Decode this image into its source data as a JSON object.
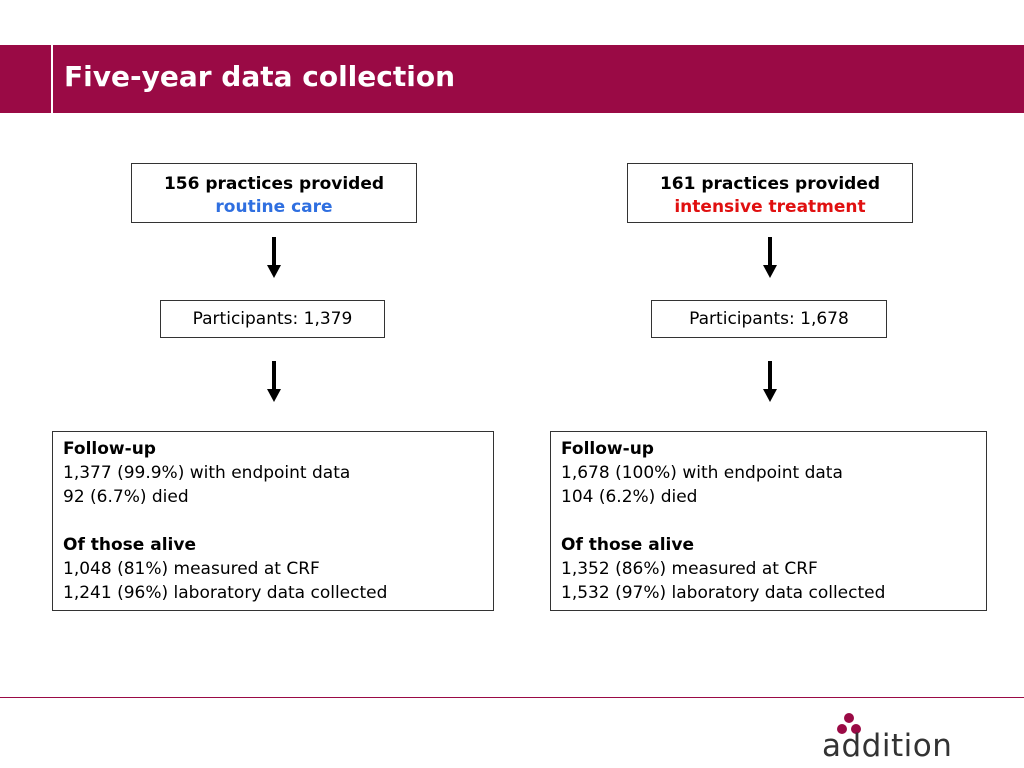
{
  "title": "Five-year data collection",
  "colors": {
    "brand": "#9a0a45",
    "routine": "#2f6fe0",
    "intensive": "#e01010"
  },
  "left": {
    "header_line1": "156 practices provided",
    "header_line2": "routine care",
    "participants": "Participants: 1,379",
    "followup_heading": "Follow-up",
    "followup_line1": "1,377 (99.9%) with endpoint data",
    "followup_line2": "92 (6.7%) died",
    "alive_heading": "Of those alive",
    "alive_line1": "1,048 (81%) measured at CRF",
    "alive_line2": "1,241 (96%) laboratory data collected"
  },
  "right": {
    "header_line1": "161 practices provided",
    "header_line2": "intensive treatment",
    "participants": "Participants: 1,678",
    "followup_heading": "Follow-up",
    "followup_line1": "1,678 (100%) with endpoint data",
    "followup_line2": "104 (6.2%) died",
    "alive_heading": "Of those alive",
    "alive_line1": "1,352 (86%) measured at CRF",
    "alive_line2": "1,532 (97%) laboratory data collected"
  },
  "logo": {
    "text": "addition",
    "icon": "three-dot-logo-icon"
  }
}
